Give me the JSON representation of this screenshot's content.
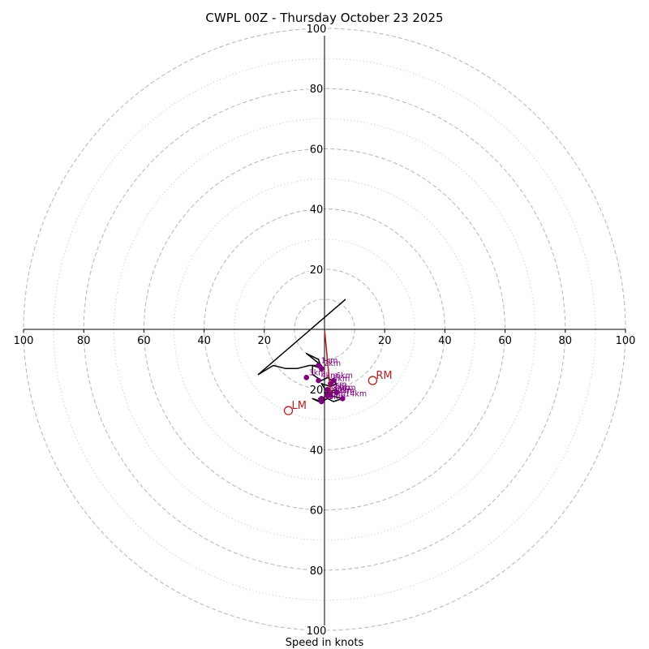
{
  "title": "CWPL 00Z - Thursday October 23 2025",
  "xlabel": "Speed in knots",
  "chart_data": {
    "type": "hodograph",
    "title": "CWPL 00Z - Thursday October 23 2025",
    "xlabel": "Speed in knots",
    "units": "knots",
    "xlim": [
      -100,
      100
    ],
    "ylim": [
      -100,
      100
    ],
    "dashed_rings": [
      10,
      20,
      40,
      60,
      80,
      100
    ],
    "dotted_rings": [
      30,
      50,
      70,
      90
    ],
    "tick_values": [
      20,
      40,
      60,
      80,
      100
    ],
    "tick_labels": [
      "20",
      "40",
      "60",
      "80",
      "100"
    ],
    "colors": {
      "hodograph": "#000000",
      "height_markers": "#800080",
      "storm_motion": "#b22222",
      "ring_dashed": "#bbbbbb",
      "ring_dotted": "#cccccc",
      "axis": "#000000"
    },
    "hodograph_uv": [
      [
        7,
        10
      ],
      [
        -22,
        -15
      ],
      [
        -17,
        -12
      ],
      [
        -13,
        -13
      ],
      [
        -9,
        -13
      ],
      [
        -5,
        -12
      ],
      [
        -1,
        -12
      ],
      [
        -6,
        -8
      ],
      [
        -2,
        -10
      ],
      [
        -1,
        -13
      ],
      [
        -4,
        -12
      ],
      [
        -4,
        -15
      ],
      [
        -1,
        -17
      ],
      [
        1,
        -16
      ],
      [
        4,
        -18
      ],
      [
        2,
        -19
      ],
      [
        -1,
        -18
      ],
      [
        1,
        -21
      ],
      [
        4,
        -20
      ],
      [
        5,
        -21
      ],
      [
        0,
        -21
      ],
      [
        1,
        -23
      ],
      [
        -2,
        -24
      ],
      [
        -4,
        -23
      ],
      [
        -1,
        -24
      ],
      [
        1,
        -23
      ],
      [
        3,
        -24
      ],
      [
        6,
        -23
      ],
      [
        2,
        -22
      ],
      [
        -2,
        -23
      ],
      [
        -1,
        -24
      ]
    ],
    "height_markers": [
      {
        "label": "1km",
        "u": -2,
        "v": -12
      },
      {
        "label": "2km",
        "u": -1,
        "v": -13
      },
      {
        "label": "3km",
        "u": -6,
        "v": -16
      },
      {
        "label": "4km",
        "u": -2,
        "v": -17
      },
      {
        "label": "5km",
        "u": 2,
        "v": -18
      },
      {
        "label": "6km",
        "u": 3,
        "v": -17
      },
      {
        "label": "7km",
        "u": 1,
        "v": -20
      },
      {
        "label": "8km",
        "u": 2,
        "v": -21
      },
      {
        "label": "9km",
        "u": 4,
        "v": -21
      },
      {
        "label": "10km",
        "u": 1,
        "v": -22
      },
      {
        "label": "11km",
        "u": -1,
        "v": -23
      },
      {
        "label": "12km",
        "u": 2,
        "v": -22
      },
      {
        "label": "13km",
        "u": -1,
        "v": -24
      },
      {
        "label": "14km",
        "u": 6,
        "v": -23
      }
    ],
    "shear_vector": {
      "from": [
        0,
        0
      ],
      "to": [
        2,
        -21
      ]
    },
    "storm_motion": [
      {
        "label": "RM",
        "u": 16,
        "v": -17
      },
      {
        "label": "LM",
        "u": -12,
        "v": -27
      }
    ]
  }
}
